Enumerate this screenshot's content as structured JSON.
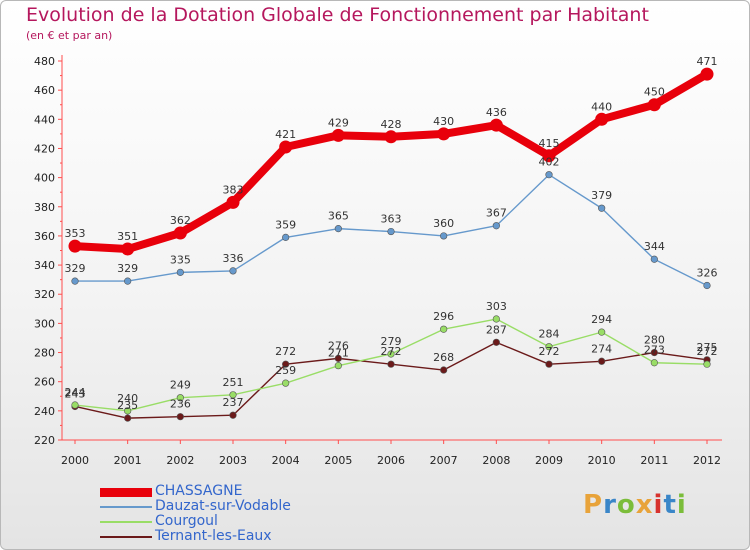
{
  "title": "Evolution de la Dotation Globale de Fonctionnement par Habitant",
  "subtitle": "(en € et par an)",
  "logo": {
    "text": "Proxiti",
    "colors": [
      "#e8a33a",
      "#3a86c8",
      "#7bbd3a",
      "#e8a33a",
      "#d7322e",
      "#3a86c8",
      "#7bbd3a"
    ]
  },
  "chart_data": {
    "type": "line",
    "x": [
      "2000",
      "2001",
      "2002",
      "2003",
      "2004",
      "2005",
      "2006",
      "2007",
      "2008",
      "2009",
      "2010",
      "2011",
      "2012"
    ],
    "ylim": [
      220,
      480
    ],
    "yticks": [
      220,
      240,
      260,
      280,
      300,
      320,
      340,
      360,
      380,
      400,
      420,
      440,
      460,
      480
    ],
    "grid": false,
    "legend_position": "bottom-left",
    "series": [
      {
        "name": "CHASSAGNE",
        "color": "#e8000b",
        "values": [
          353,
          351,
          362,
          383,
          421,
          429,
          428,
          430,
          436,
          415,
          440,
          450,
          471
        ]
      },
      {
        "name": "Dauzat-sur-Vodable",
        "color": "#6699cc",
        "values": [
          329,
          329,
          335,
          336,
          359,
          365,
          363,
          360,
          367,
          402,
          379,
          344,
          326
        ]
      },
      {
        "name": "Courgoul",
        "color": "#99dd66",
        "values": [
          244,
          240,
          249,
          251,
          259,
          271,
          279,
          296,
          303,
          284,
          294,
          273,
          272
        ]
      },
      {
        "name": "Ternant-les-Eaux",
        "color": "#6b1a1a",
        "values": [
          243,
          235,
          236,
          237,
          272,
          276,
          272,
          268,
          287,
          272,
          274,
          280,
          275
        ]
      }
    ]
  }
}
